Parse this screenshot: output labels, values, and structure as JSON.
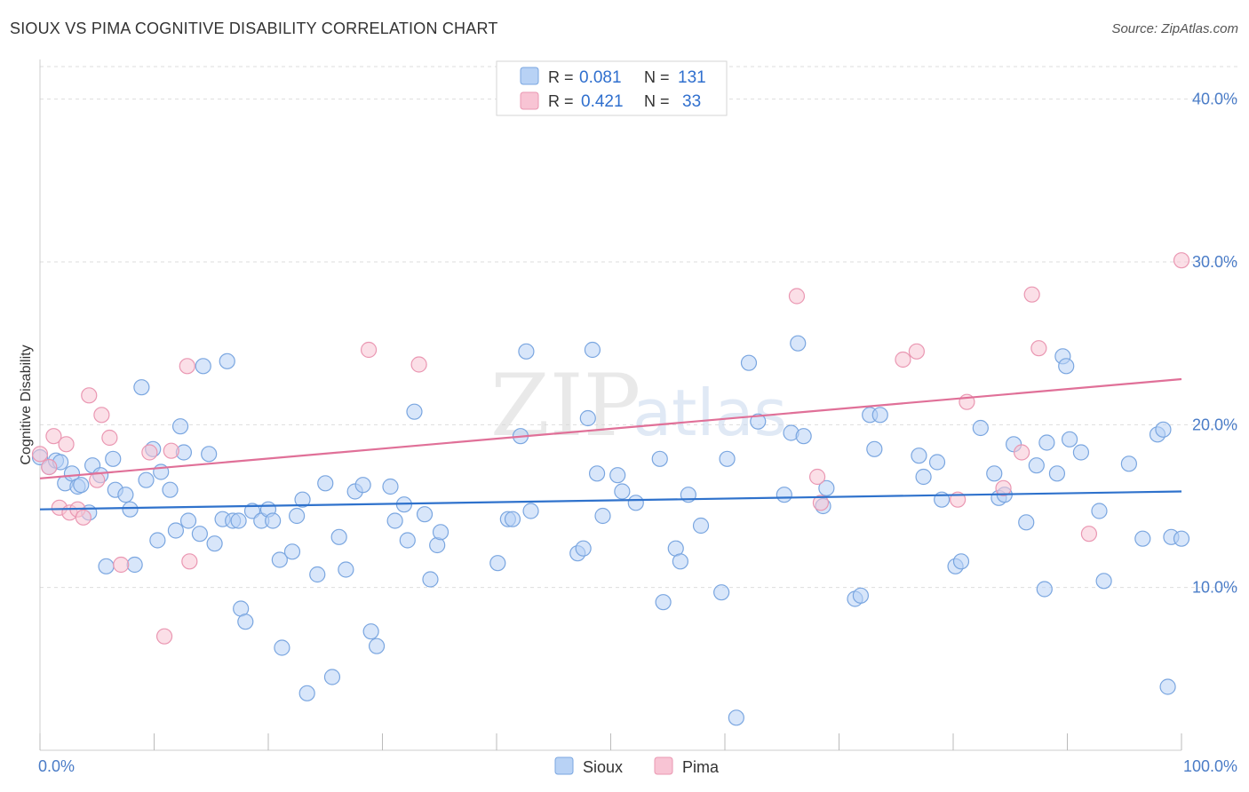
{
  "title": "SIOUX VS PIMA COGNITIVE DISABILITY CORRELATION CHART",
  "source": "Source: ZipAtlas.com",
  "colors": {
    "sioux_fill": "#b8d2f5",
    "sioux_stroke": "#7aa6e0",
    "sioux_line": "#2f72cc",
    "pima_fill": "#f8c4d4",
    "pima_stroke": "#ea97b2",
    "pima_line": "#e07098",
    "tick_text": "#4a7cc7",
    "grid": "#dddddd"
  },
  "legend": {
    "rows": [
      {
        "r_label": "R =",
        "r_value": "0.081",
        "n_label": "N =",
        "n_value": "131"
      },
      {
        "r_label": "R =",
        "r_value": "0.421",
        "n_label": "N =",
        "n_value": "33"
      }
    ]
  },
  "watermark": {
    "zip": "ZIP",
    "atlas": "atlas"
  },
  "chart_data": {
    "type": "scatter",
    "title": "SIOUX VS PIMA COGNITIVE DISABILITY CORRELATION CHART",
    "ylabel": "Cognitive Disability",
    "xlabel": "",
    "xlim": [
      0,
      100
    ],
    "ylim": [
      0,
      42
    ],
    "x_tick_labels": [
      "0.0%",
      "100.0%"
    ],
    "y_ticks": [
      10,
      20,
      30,
      40
    ],
    "y_tick_labels": [
      "10.0%",
      "20.0%",
      "30.0%",
      "40.0%"
    ],
    "grid": true,
    "legend_position": "top-center",
    "series": [
      {
        "name": "Sioux",
        "r": 0.081,
        "n": 131,
        "trend": {
          "x": [
            0,
            100
          ],
          "y": [
            14.8,
            15.9
          ]
        },
        "points": [
          [
            0.0,
            18.0
          ],
          [
            0.8,
            17.4
          ],
          [
            1.4,
            17.8
          ],
          [
            1.8,
            17.7
          ],
          [
            2.2,
            16.4
          ],
          [
            2.8,
            17.0
          ],
          [
            3.3,
            16.2
          ],
          [
            3.6,
            16.3
          ],
          [
            4.3,
            14.6
          ],
          [
            4.6,
            17.5
          ],
          [
            5.3,
            16.9
          ],
          [
            5.8,
            11.3
          ],
          [
            6.4,
            17.9
          ],
          [
            6.6,
            16.0
          ],
          [
            7.5,
            15.7
          ],
          [
            7.9,
            14.8
          ],
          [
            8.3,
            11.4
          ],
          [
            8.9,
            22.3
          ],
          [
            9.3,
            16.6
          ],
          [
            9.9,
            18.5
          ],
          [
            10.3,
            12.9
          ],
          [
            10.6,
            17.1
          ],
          [
            11.4,
            16.0
          ],
          [
            11.9,
            13.5
          ],
          [
            12.3,
            19.9
          ],
          [
            12.6,
            18.3
          ],
          [
            13.0,
            14.1
          ],
          [
            14.0,
            13.3
          ],
          [
            14.3,
            23.6
          ],
          [
            14.8,
            18.2
          ],
          [
            15.3,
            12.7
          ],
          [
            16.0,
            14.2
          ],
          [
            16.4,
            23.9
          ],
          [
            16.9,
            14.1
          ],
          [
            17.4,
            14.1
          ],
          [
            17.6,
            8.7
          ],
          [
            18.0,
            7.9
          ],
          [
            18.6,
            14.7
          ],
          [
            19.4,
            14.1
          ],
          [
            20.0,
            14.8
          ],
          [
            20.4,
            14.1
          ],
          [
            21.0,
            11.7
          ],
          [
            21.2,
            6.3
          ],
          [
            22.1,
            12.2
          ],
          [
            22.5,
            14.4
          ],
          [
            23.0,
            15.4
          ],
          [
            23.4,
            3.5
          ],
          [
            24.3,
            10.8
          ],
          [
            25.0,
            16.4
          ],
          [
            25.6,
            4.5
          ],
          [
            26.2,
            13.1
          ],
          [
            26.8,
            11.1
          ],
          [
            27.6,
            15.9
          ],
          [
            28.3,
            16.3
          ],
          [
            29.0,
            7.3
          ],
          [
            29.5,
            6.4
          ],
          [
            30.7,
            16.2
          ],
          [
            31.1,
            14.1
          ],
          [
            31.9,
            15.1
          ],
          [
            32.2,
            12.9
          ],
          [
            32.8,
            20.8
          ],
          [
            33.7,
            14.5
          ],
          [
            34.2,
            10.5
          ],
          [
            34.8,
            12.6
          ],
          [
            35.1,
            13.4
          ],
          [
            40.1,
            11.5
          ],
          [
            41.0,
            14.2
          ],
          [
            41.4,
            14.2
          ],
          [
            42.1,
            19.3
          ],
          [
            42.6,
            24.5
          ],
          [
            43.0,
            14.7
          ],
          [
            47.1,
            12.1
          ],
          [
            47.6,
            12.4
          ],
          [
            48.0,
            20.4
          ],
          [
            48.4,
            24.6
          ],
          [
            48.8,
            17.0
          ],
          [
            49.3,
            14.4
          ],
          [
            50.6,
            16.9
          ],
          [
            51.0,
            15.9
          ],
          [
            52.2,
            15.2
          ],
          [
            54.3,
            17.9
          ],
          [
            54.6,
            9.1
          ],
          [
            55.7,
            12.4
          ],
          [
            56.1,
            11.6
          ],
          [
            56.8,
            15.7
          ],
          [
            57.9,
            13.8
          ],
          [
            59.7,
            9.7
          ],
          [
            60.2,
            17.9
          ],
          [
            62.1,
            23.8
          ],
          [
            62.9,
            20.2
          ],
          [
            65.2,
            15.7
          ],
          [
            65.8,
            19.5
          ],
          [
            66.4,
            25.0
          ],
          [
            66.9,
            19.3
          ],
          [
            68.9,
            16.1
          ],
          [
            68.6,
            15.0
          ],
          [
            71.4,
            9.3
          ],
          [
            71.9,
            9.5
          ],
          [
            72.7,
            20.6
          ],
          [
            73.1,
            18.5
          ],
          [
            73.6,
            20.6
          ],
          [
            77.0,
            18.1
          ],
          [
            77.4,
            16.8
          ],
          [
            78.6,
            17.7
          ],
          [
            79.0,
            15.4
          ],
          [
            80.2,
            11.3
          ],
          [
            80.7,
            11.6
          ],
          [
            82.4,
            19.8
          ],
          [
            83.6,
            17.0
          ],
          [
            84.0,
            15.5
          ],
          [
            84.5,
            15.7
          ],
          [
            85.3,
            18.8
          ],
          [
            86.4,
            14.0
          ],
          [
            87.3,
            17.5
          ],
          [
            88.0,
            9.9
          ],
          [
            88.2,
            18.9
          ],
          [
            89.1,
            17.0
          ],
          [
            89.6,
            24.2
          ],
          [
            89.9,
            23.6
          ],
          [
            90.2,
            19.1
          ],
          [
            91.2,
            18.3
          ],
          [
            92.8,
            14.7
          ],
          [
            93.2,
            10.4
          ],
          [
            95.4,
            17.6
          ],
          [
            96.6,
            13.0
          ],
          [
            97.9,
            19.4
          ],
          [
            98.4,
            19.7
          ],
          [
            98.8,
            3.9
          ],
          [
            99.1,
            13.1
          ],
          [
            100.0,
            13.0
          ],
          [
            61.0,
            2.0
          ]
        ]
      },
      {
        "name": "Pima",
        "r": 0.421,
        "n": 33,
        "trend": {
          "x": [
            0,
            100
          ],
          "y": [
            16.7,
            22.8
          ]
        },
        "points": [
          [
            0.0,
            18.2
          ],
          [
            0.8,
            17.4
          ],
          [
            1.2,
            19.3
          ],
          [
            1.7,
            14.9
          ],
          [
            2.3,
            18.8
          ],
          [
            2.6,
            14.6
          ],
          [
            3.3,
            14.8
          ],
          [
            3.8,
            14.3
          ],
          [
            4.3,
            21.8
          ],
          [
            5.0,
            16.6
          ],
          [
            5.4,
            20.6
          ],
          [
            6.1,
            19.2
          ],
          [
            7.1,
            11.4
          ],
          [
            9.6,
            18.3
          ],
          [
            10.9,
            7.0
          ],
          [
            11.5,
            18.4
          ],
          [
            12.9,
            23.6
          ],
          [
            13.1,
            11.6
          ],
          [
            28.8,
            24.6
          ],
          [
            33.2,
            23.7
          ],
          [
            66.3,
            27.9
          ],
          [
            68.1,
            16.8
          ],
          [
            68.4,
            15.2
          ],
          [
            75.6,
            24.0
          ],
          [
            76.8,
            24.5
          ],
          [
            80.4,
            15.4
          ],
          [
            81.2,
            21.4
          ],
          [
            84.4,
            16.1
          ],
          [
            86.0,
            18.3
          ],
          [
            86.9,
            28.0
          ],
          [
            87.5,
            24.7
          ],
          [
            91.9,
            13.3
          ],
          [
            100.0,
            30.1
          ]
        ]
      }
    ]
  },
  "bottom_legend": [
    {
      "label": "Sioux"
    },
    {
      "label": "Pima"
    }
  ]
}
